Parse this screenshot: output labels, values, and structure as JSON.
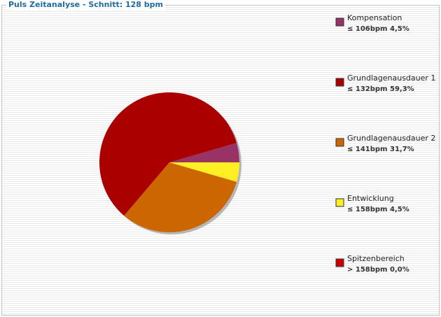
{
  "chart_data": {
    "type": "pie",
    "title": "Puls Zeitanalyse - Schnitt: 128 bpm",
    "categories": [
      "Kompensation",
      "Grundlagenausdauer 1",
      "Grundlagenausdauer 2",
      "Entwicklung",
      "Spitzenbereich"
    ],
    "thresholds": [
      "≤ 106bpm",
      "≤ 132bpm",
      "≤ 141bpm",
      "≤ 158bpm",
      "> 158bpm"
    ],
    "values": [
      4.5,
      59.3,
      31.7,
      4.5,
      0.0
    ],
    "value_labels": [
      "4,5%",
      "59,3%",
      "31,7%",
      "4,5%",
      "0,0%"
    ],
    "colors": [
      "#993366",
      "#aa0000",
      "#cc6600",
      "#ffee22",
      "#cc0000"
    ]
  }
}
